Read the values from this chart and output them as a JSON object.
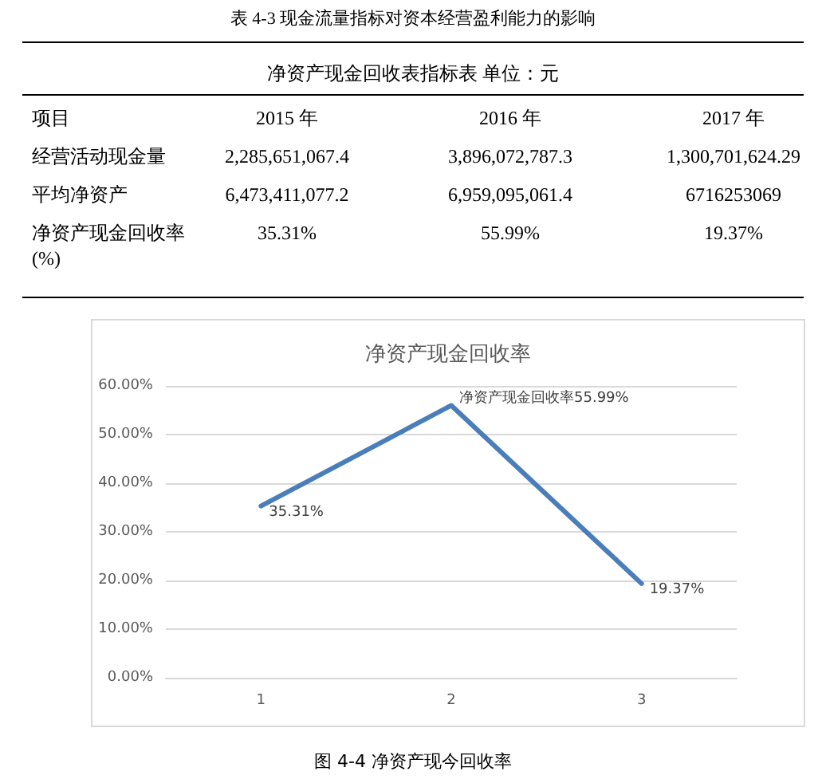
{
  "chart_data": {
    "type": "line",
    "title": "净资产现金回收率",
    "categories": [
      "1",
      "2",
      "3"
    ],
    "series": [
      {
        "color": "#4a7ebb",
        "values": [
          35.31,
          55.99,
          19.37
        ],
        "value_labels": [
          "35.31%",
          "净资产现金回收率55.99%",
          "19.37%"
        ]
      }
    ],
    "ylim": [
      0,
      60
    ],
    "yticks": [
      {
        "value": 0,
        "label": "0.00%"
      },
      {
        "value": 10,
        "label": "10.00%"
      },
      {
        "value": 20,
        "label": "20.00%"
      },
      {
        "value": 30,
        "label": "30.00%"
      },
      {
        "value": 40,
        "label": "40.00%"
      },
      {
        "value": 50,
        "label": "50.00%"
      },
      {
        "value": 60,
        "label": "60.00%"
      }
    ],
    "grid": "y",
    "marker": "none",
    "line_style": "solid",
    "annotations": [
      "表 4-3  现金流量指标对资本经营盈利能力的影响",
      "净资产现金回收表指标表  单位：元",
      "项目",
      "2015 年",
      "2016 年",
      "2017 年",
      "经营活动现金量",
      "2,285,651,067.4",
      "3,896,072,787.3",
      "1,300,701,624.29",
      "平均净资产",
      "6,473,411,077.2",
      "6,959,095,061.4",
      "6716253069",
      "净资产现金回收率 (%)",
      "35.31%",
      "55.99%",
      "19.37%",
      "图 4-4  净资产现今回收率"
    ]
  }
}
